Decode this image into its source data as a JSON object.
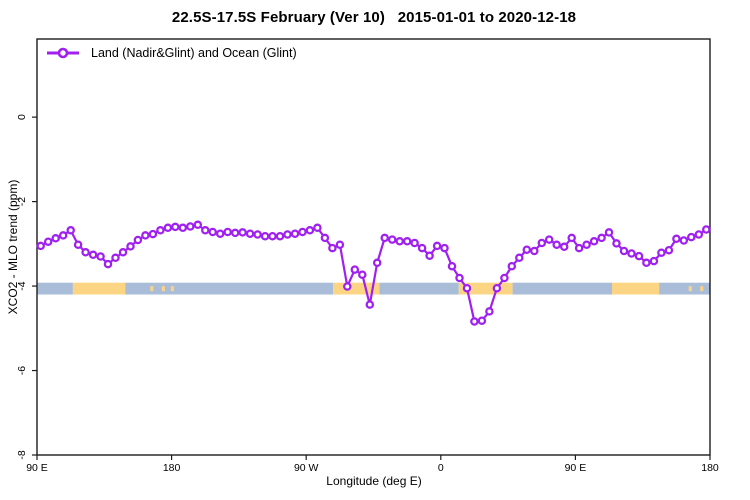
{
  "header": {
    "title": "22.5S-17.5S February (Ver 10)   2015-01-01 to 2020-12-18"
  },
  "legend": {
    "label": "Land (Nadir&Glint) and Ocean (Glint)"
  },
  "axes": {
    "x": {
      "label": "Longitude (deg E)",
      "range": [
        90,
        540
      ],
      "ticks": [
        {
          "value": 90,
          "label": "90 E"
        },
        {
          "value": 180,
          "label": "180"
        },
        {
          "value": 270,
          "label": "90 W"
        },
        {
          "value": 360,
          "label": "0"
        },
        {
          "value": 450,
          "label": "90 E"
        },
        {
          "value": 540,
          "label": "180"
        }
      ]
    },
    "y": {
      "label": "XCO2 - MLO trend (ppm)",
      "range": [
        -8,
        1.85
      ],
      "ticks": [
        {
          "value": 0,
          "label": "0"
        },
        {
          "value": -2,
          "label": "-2"
        },
        {
          "value": -4,
          "label": "-4"
        },
        {
          "value": -6,
          "label": "-6"
        },
        {
          "value": -8,
          "label": "-8"
        }
      ]
    }
  },
  "colors": {
    "series": "#a020f0",
    "marker_fill": "#ffffff",
    "ocean_band": "#a9bdd8",
    "land_band": "#fcd584",
    "frame": "#1c1c1c",
    "text": "#000000"
  },
  "chart_data": {
    "type": "line",
    "title": "22.5S-17.5S February (Ver 10)   2015-01-01 to 2020-12-18",
    "xlabel": "Longitude (deg E)",
    "ylabel": "XCO2 - MLO trend (ppm)",
    "xlim": [
      90,
      540
    ],
    "ylim": [
      -8,
      1.85
    ],
    "grid": false,
    "legend_position": "top-left",
    "series": [
      {
        "name": "Land (Nadir&Glint) and Ocean (Glint)",
        "color": "#a020f0",
        "marker": "open-circle",
        "lon_start": 92.5,
        "lon_step": 5,
        "values": [
          -3.05,
          -2.95,
          -2.87,
          -2.8,
          -2.68,
          -3.02,
          -3.2,
          -3.26,
          -3.3,
          -3.48,
          -3.33,
          -3.2,
          -3.06,
          -2.91,
          -2.8,
          -2.77,
          -2.68,
          -2.62,
          -2.6,
          -2.62,
          -2.59,
          -2.55,
          -2.68,
          -2.72,
          -2.76,
          -2.72,
          -2.74,
          -2.73,
          -2.76,
          -2.78,
          -2.82,
          -2.82,
          -2.82,
          -2.78,
          -2.76,
          -2.72,
          -2.68,
          -2.62,
          -2.86,
          -3.1,
          -3.02,
          -4.01,
          -3.61,
          -3.73,
          -4.44,
          -3.45,
          -2.86,
          -2.9,
          -2.94,
          -2.94,
          -2.98,
          -3.1,
          -3.28,
          -3.05,
          -3.1,
          -3.53,
          -3.81,
          -4.05,
          -4.84,
          -4.82,
          -4.6,
          -4.05,
          -3.81,
          -3.53,
          -3.33,
          -3.14,
          -3.17,
          -2.98,
          -2.9,
          -3.02,
          -3.07,
          -2.86,
          -3.1,
          -3.02,
          -2.94,
          -2.86,
          -2.73,
          -2.99,
          -3.17,
          -3.23,
          -3.29,
          -3.45,
          -3.41,
          -3.21,
          -3.15,
          -2.88,
          -2.92,
          -2.84,
          -2.78,
          -2.66
        ]
      }
    ],
    "surface_band": {
      "y_top_ppm": -3.92,
      "y_bottom_ppm": -4.2,
      "ocean_color": "#a9bdd8",
      "land_color": "#fcd584",
      "segments": [
        {
          "surface": "ocean",
          "from_deg": 90,
          "to_deg": 114
        },
        {
          "surface": "land",
          "from_deg": 114,
          "to_deg": 149
        },
        {
          "surface": "ocean",
          "from_deg": 149,
          "to_deg": 288
        },
        {
          "surface": "land",
          "from_deg": 288,
          "to_deg": 319
        },
        {
          "surface": "ocean",
          "from_deg": 319,
          "to_deg": 372
        },
        {
          "surface": "land",
          "from_deg": 372,
          "to_deg": 408
        },
        {
          "surface": "ocean",
          "from_deg": 408,
          "to_deg": 474.5
        },
        {
          "surface": "land",
          "from_deg": 474.5,
          "to_deg": 506
        },
        {
          "surface": "ocean",
          "from_deg": 506,
          "to_deg": 540
        }
      ],
      "islands_deg": [
        166.8,
        174.5,
        180.5,
        526.8,
        534.5
      ]
    }
  }
}
